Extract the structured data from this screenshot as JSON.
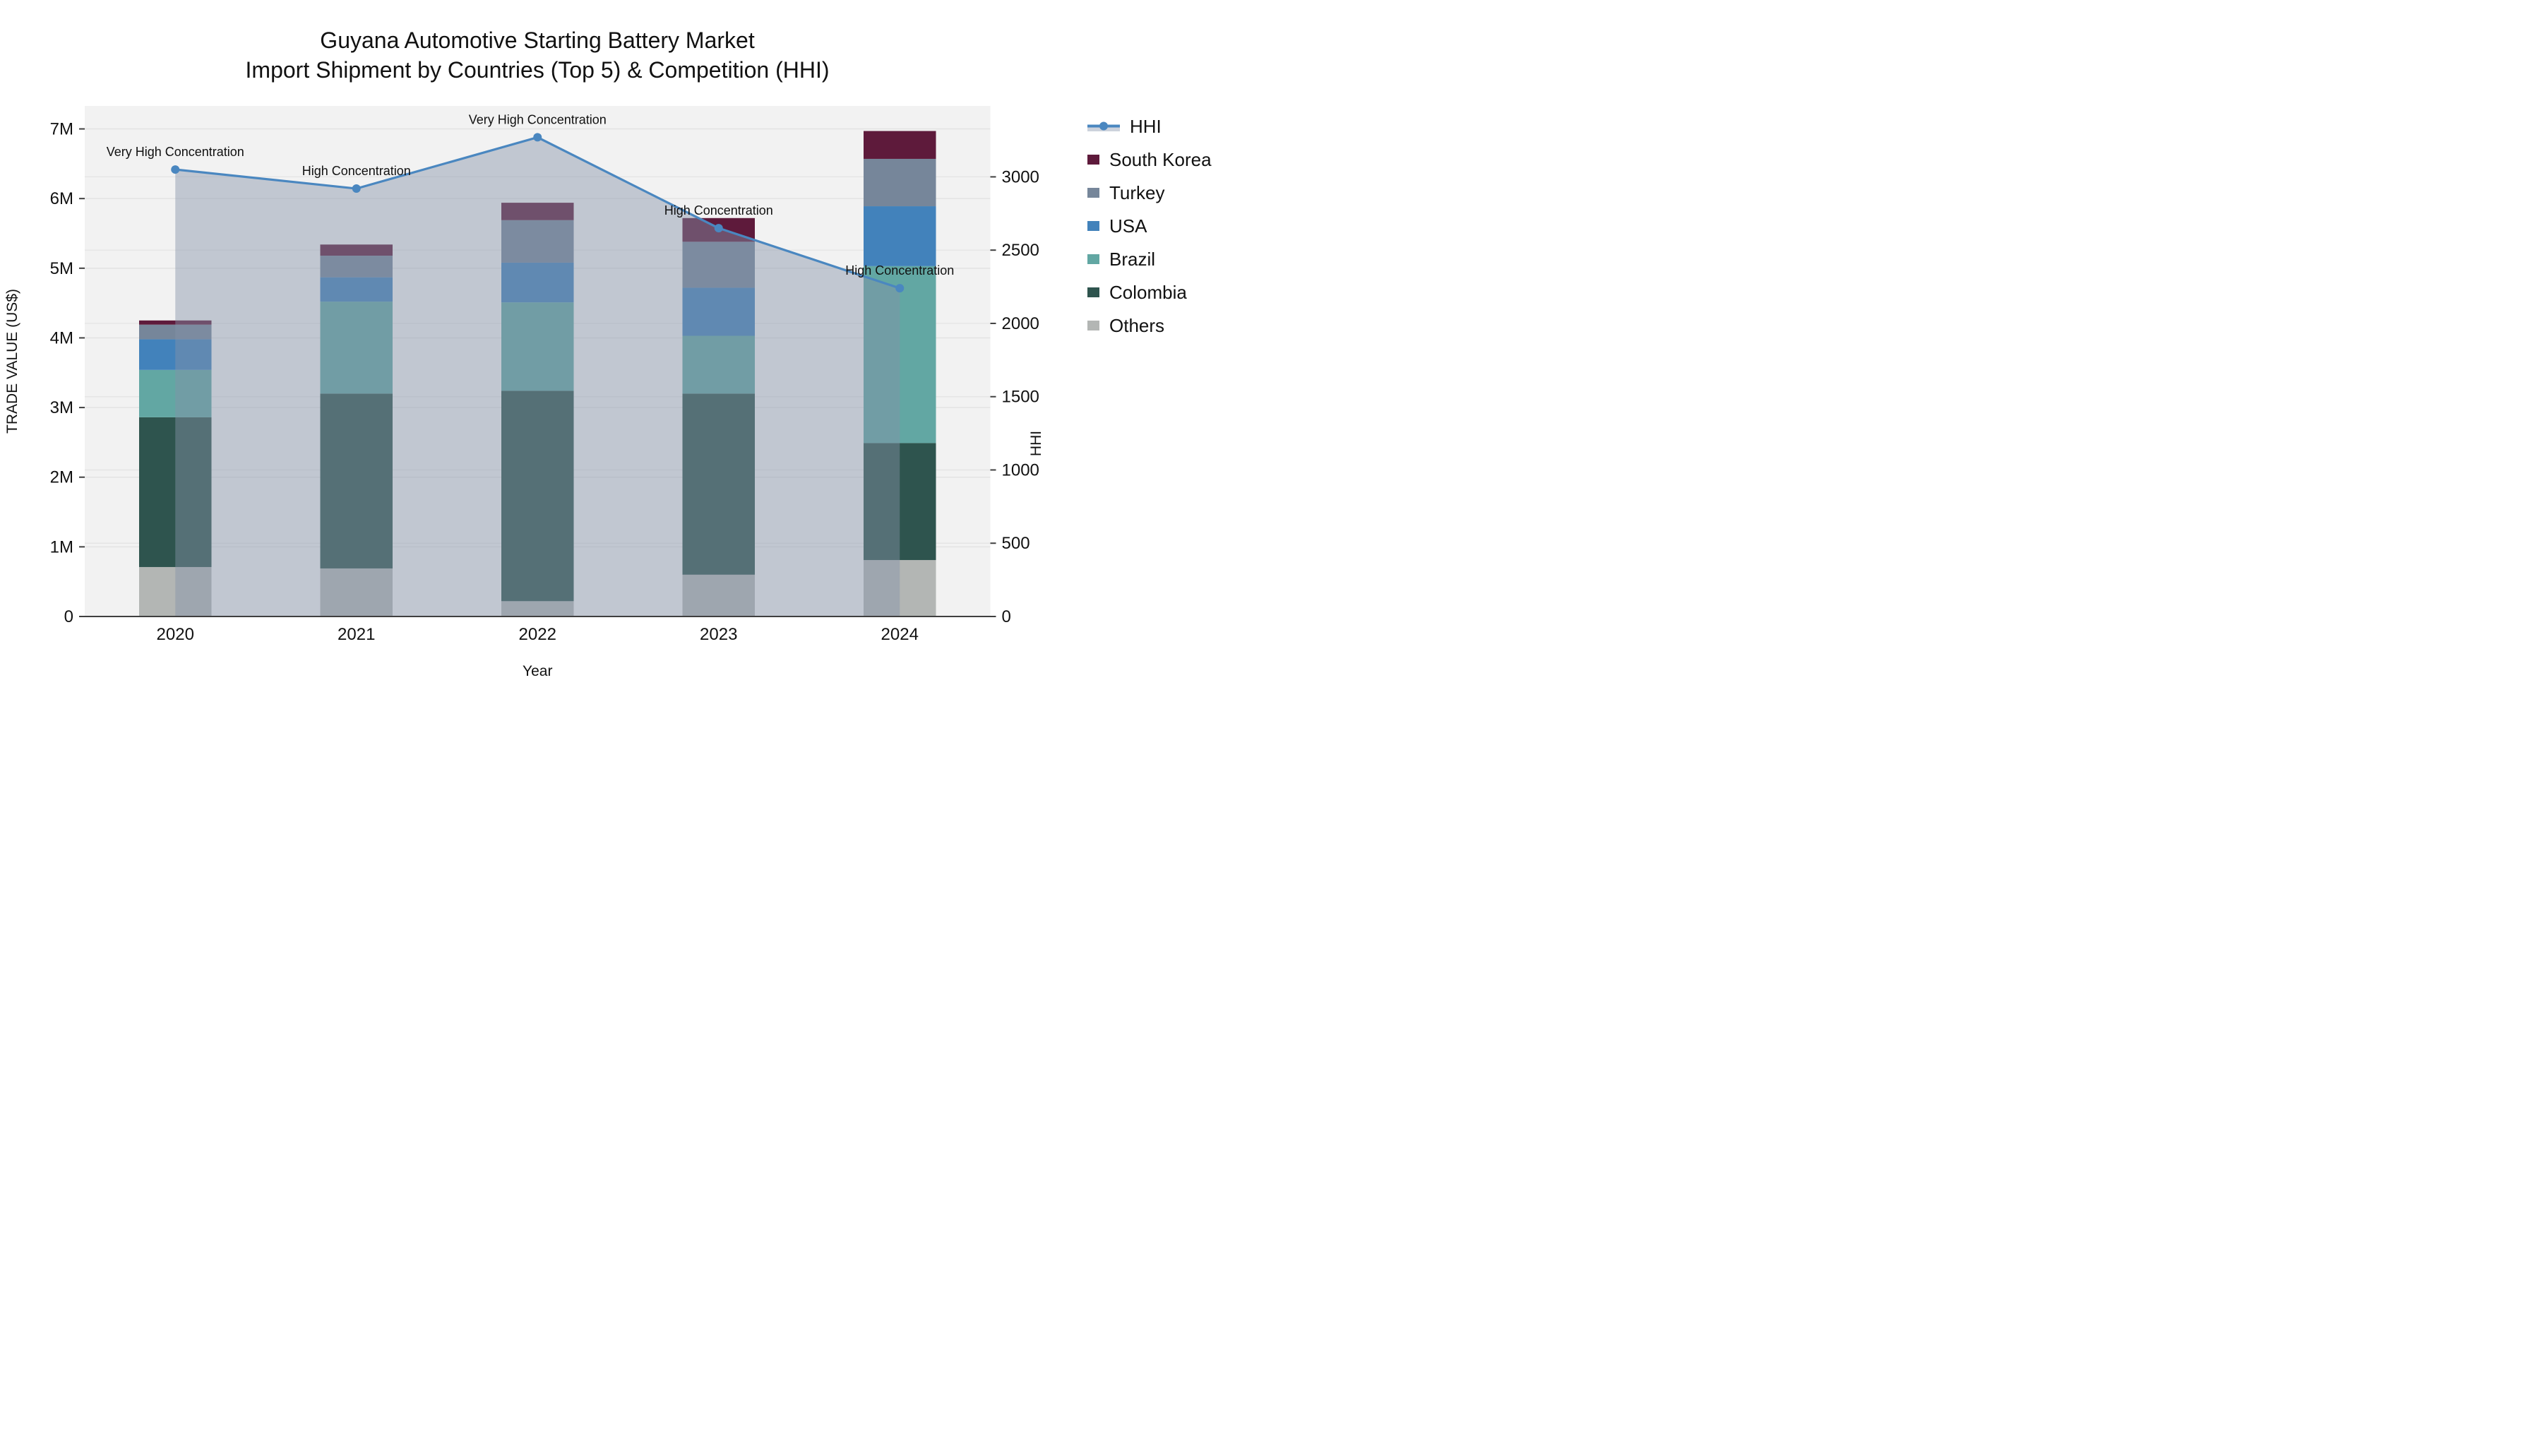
{
  "title": {
    "line1": "Guyana Automotive Starting Battery Market",
    "line2": "Import Shipment by Countries (Top 5) & Competition (HHI)"
  },
  "legend": {
    "items": [
      {
        "label": "HHI",
        "type": "line",
        "color": "#4a87c0"
      },
      {
        "label": "South Korea",
        "type": "swatch",
        "color": "#5e1a3b"
      },
      {
        "label": "Turkey",
        "type": "swatch",
        "color": "#76869a"
      },
      {
        "label": "USA",
        "type": "swatch",
        "color": "#4282bb"
      },
      {
        "label": "Brazil",
        "type": "swatch",
        "color": "#62a7a3"
      },
      {
        "label": "Colombia",
        "type": "swatch",
        "color": "#2e544e"
      },
      {
        "label": "Others",
        "type": "swatch",
        "color": "#b3b6b4"
      }
    ]
  },
  "chart_data": {
    "type": "bar+line",
    "title": "Guyana Automotive Starting Battery Market — Import Shipment by Countries (Top 5) & Competition (HHI)",
    "categories": [
      "2020",
      "2021",
      "2022",
      "2023",
      "2024"
    ],
    "xlabel": "Year",
    "y_left": {
      "label": "TRADE VALUE (US$)",
      "unit": "M US$",
      "range": [
        0,
        7.33
      ],
      "ticks": [
        {
          "v": 0,
          "t": "0"
        },
        {
          "v": 1,
          "t": "1M"
        },
        {
          "v": 2,
          "t": "2M"
        },
        {
          "v": 3,
          "t": "3M"
        },
        {
          "v": 4,
          "t": "4M"
        },
        {
          "v": 5,
          "t": "5M"
        },
        {
          "v": 6,
          "t": "6M"
        },
        {
          "v": 7,
          "t": "7M"
        }
      ]
    },
    "y_right": {
      "label": "HHI",
      "range": [
        0,
        3484
      ],
      "ticks": [
        {
          "v": 0,
          "t": "0"
        },
        {
          "v": 500,
          "t": "500"
        },
        {
          "v": 1000,
          "t": "1000"
        },
        {
          "v": 1500,
          "t": "1500"
        },
        {
          "v": 2000,
          "t": "2000"
        },
        {
          "v": 2500,
          "t": "2500"
        },
        {
          "v": 3000,
          "t": "3000"
        }
      ]
    },
    "stack_series_bottom_to_top": [
      {
        "name": "Others",
        "color": "#b3b6b4",
        "values": [
          0.71,
          0.69,
          0.22,
          0.6,
          0.81
        ]
      },
      {
        "name": "Colombia",
        "color": "#2e544e",
        "values": [
          2.15,
          2.51,
          3.02,
          2.6,
          1.68
        ]
      },
      {
        "name": "Brazil",
        "color": "#62a7a3",
        "values": [
          0.68,
          1.32,
          1.27,
          0.83,
          2.54
        ]
      },
      {
        "name": "USA",
        "color": "#4282bb",
        "values": [
          0.44,
          0.35,
          0.57,
          0.69,
          0.86
        ]
      },
      {
        "name": "Turkey",
        "color": "#76869a",
        "values": [
          0.21,
          0.31,
          0.61,
          0.66,
          0.68
        ]
      },
      {
        "name": "South Korea",
        "color": "#5e1a3b",
        "values": [
          0.06,
          0.16,
          0.25,
          0.34,
          0.4
        ]
      }
    ],
    "bar_totals": [
      4.25,
      5.34,
      5.94,
      5.72,
      6.97
    ],
    "hhi_line": {
      "name": "HHI",
      "color": "#4a87c0",
      "fill_color": "rgba(132,147,168,0.45)",
      "values": [
        3050,
        2920,
        3270,
        2650,
        2240
      ]
    },
    "annotations": [
      {
        "category": "2020",
        "text": "Very High Concentration"
      },
      {
        "category": "2021",
        "text": "High Concentration"
      },
      {
        "category": "2022",
        "text": "Very High Concentration"
      },
      {
        "category": "2023",
        "text": "High Concentration"
      },
      {
        "category": "2024",
        "text": "High Concentration"
      }
    ],
    "style": {
      "plot_bg": "#f2f2f2",
      "grid_color": "#e3e3e3",
      "axis_line_color": "#3f3f3f",
      "area_swatch_bg": "#ccd2dc"
    },
    "legend_position": "right",
    "grid": true
  }
}
